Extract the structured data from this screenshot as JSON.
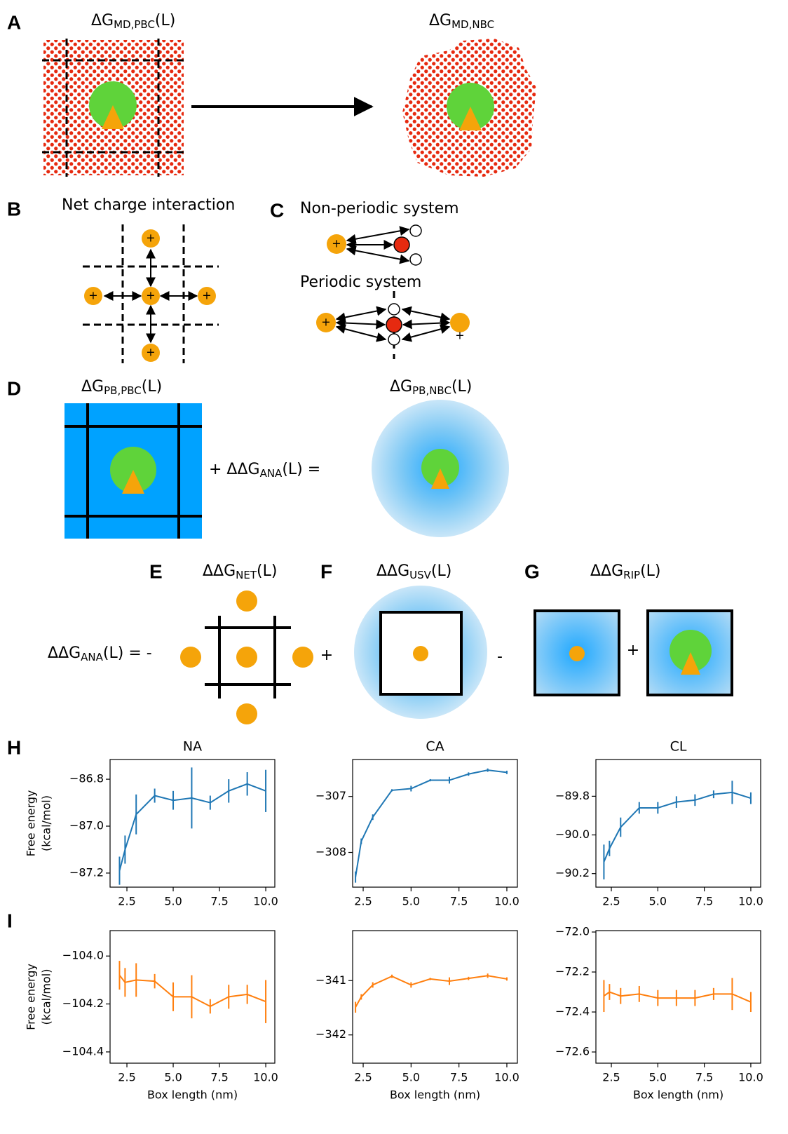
{
  "panels": {
    "A": {
      "label": "A",
      "left": {
        "prefix": "ΔG",
        "sub": "MD,PBC",
        "suffix": "(L)"
      },
      "right": {
        "prefix": "ΔG",
        "sub": "MD,NBC"
      }
    },
    "B": {
      "label": "B",
      "title": "Net charge interaction",
      "charge": "+"
    },
    "C": {
      "label": "C",
      "nonperiodic": "Non-periodic system",
      "periodic": "Periodic system",
      "charge": "+"
    },
    "D": {
      "label": "D",
      "left": {
        "prefix": "ΔG",
        "sub": "PB,PBC",
        "suffix": "(L)"
      },
      "middle": {
        "prefix": "+ ΔΔG",
        "sub": "ANA",
        "suffix": "(L) ="
      },
      "right": {
        "prefix": "ΔG",
        "sub": "PB,NBC",
        "suffix": "(L)"
      }
    },
    "E": {
      "label": "E",
      "title": {
        "prefix": "ΔΔG",
        "sub": "NET",
        "suffix": "(L)"
      },
      "lhs": {
        "prefix": "ΔΔG",
        "sub": "ANA",
        "suffix": "(L) = -"
      },
      "plus": "+"
    },
    "F": {
      "label": "F",
      "title": {
        "prefix": "ΔΔG",
        "sub": "USV",
        "suffix": "(L)"
      },
      "minus": "-"
    },
    "G": {
      "label": "G",
      "title": {
        "prefix": "ΔΔG",
        "sub": "RIP",
        "suffix": "(L)"
      },
      "plus": "+"
    },
    "H": {
      "label": "H"
    },
    "I": {
      "label": "I"
    }
  },
  "chart_data": [
    {
      "type": "line",
      "title": "NA",
      "ylabel": [
        "Free energy",
        "(kcal/mol)"
      ],
      "x": [
        2.1,
        2.4,
        3,
        4,
        5,
        6,
        7,
        8,
        9,
        10
      ],
      "series": [
        {
          "color": "#1f77b4",
          "values": [
            -87.19,
            -87.1,
            -86.95,
            -86.87,
            -86.89,
            -86.88,
            -86.9,
            -86.85,
            -86.82,
            -86.85
          ],
          "errors": [
            0.06,
            0.06,
            0.085,
            0.03,
            0.04,
            0.13,
            0.03,
            0.05,
            0.05,
            0.09
          ]
        }
      ],
      "xlim": [
        1.59,
        10.49
      ],
      "ylim": [
        -87.26,
        -86.716
      ],
      "xticks": [
        2.5,
        {
          "value": 5,
          "label": "5.0"
        },
        7.5,
        {
          "value": 10,
          "label": "10.0"
        }
      ],
      "yticks": [
        {
          "value": -87.2,
          "label": "−87.2"
        },
        {
          "value": -87.0,
          "label": "−87.0"
        },
        {
          "value": -86.8,
          "label": "−86.8"
        }
      ]
    },
    {
      "type": "line",
      "title": "CA",
      "x": [
        2.1,
        2.4,
        3,
        4,
        5,
        6,
        7,
        8,
        9,
        10
      ],
      "series": [
        {
          "color": "#1f77b4",
          "values": [
            -308.44,
            -307.8,
            -307.37,
            -306.89,
            -306.86,
            -306.71,
            -306.71,
            -306.6,
            -306.53,
            -306.57
          ],
          "errors": [
            0.1,
            0.05,
            0.05,
            0.02,
            0.05,
            0.02,
            0.06,
            0.03,
            0.03,
            0.03
          ]
        }
      ],
      "xlim": [
        1.95,
        10.55
      ],
      "ylim": [
        -308.62,
        -306.34
      ],
      "xticks": [
        2.5,
        {
          "value": 5,
          "label": "5.0"
        },
        7.5,
        {
          "value": 10,
          "label": "10.0"
        }
      ],
      "yticks": [
        {
          "value": -308,
          "label": "−308"
        },
        {
          "value": -307,
          "label": "−307"
        }
      ]
    },
    {
      "type": "line",
      "title": "CL",
      "x": [
        2.1,
        2.4,
        3,
        4,
        5,
        6,
        7,
        8,
        9,
        10
      ],
      "series": [
        {
          "color": "#1f77b4",
          "values": [
            -90.14,
            -90.07,
            -89.96,
            -89.86,
            -89.86,
            -89.83,
            -89.82,
            -89.79,
            -89.78,
            -89.81
          ],
          "errors": [
            0.09,
            0.04,
            0.05,
            0.03,
            0.03,
            0.03,
            0.03,
            0.02,
            0.06,
            0.03
          ]
        }
      ],
      "xlim": [
        1.67,
        10.53
      ],
      "ylim": [
        -90.27,
        -89.61
      ],
      "xticks": [
        2.5,
        {
          "value": 5,
          "label": "5.0"
        },
        7.5,
        {
          "value": 10,
          "label": "10.0"
        }
      ],
      "yticks": [
        {
          "value": -90.2,
          "label": "−90.2"
        },
        {
          "value": -90.0,
          "label": "−90.0"
        },
        {
          "value": -89.8,
          "label": "−89.8"
        }
      ]
    },
    {
      "type": "line",
      "ylabel": [
        "Free energy",
        "(kcal/mol)"
      ],
      "xlabel": "Box length (nm)",
      "x": [
        2.1,
        2.4,
        3,
        4,
        5,
        6,
        7,
        8,
        9,
        10
      ],
      "series": [
        {
          "color": "#ff7f0e",
          "values": [
            -104.08,
            -104.11,
            -104.1,
            -104.105,
            -104.17,
            -104.17,
            -104.21,
            -104.17,
            -104.16,
            -104.19
          ],
          "errors": [
            0.06,
            0.06,
            0.07,
            0.03,
            0.06,
            0.09,
            0.03,
            0.05,
            0.04,
            0.09
          ]
        }
      ],
      "xlim": [
        1.59,
        10.49
      ],
      "ylim": [
        -104.447,
        -103.894
      ],
      "xticks": [
        2.5,
        {
          "value": 5,
          "label": "5.0"
        },
        7.5,
        {
          "value": 10,
          "label": "10.0"
        }
      ],
      "yticks": [
        {
          "value": -104.4,
          "label": "−104.4"
        },
        {
          "value": -104.2,
          "label": "−104.2"
        },
        {
          "value": -104.0,
          "label": "−104.0"
        }
      ]
    },
    {
      "type": "line",
      "xlabel": "Box length (nm)",
      "x": [
        2.1,
        2.4,
        3,
        4,
        5,
        6,
        7,
        8,
        9,
        10
      ],
      "series": [
        {
          "color": "#ff7f0e",
          "values": [
            -341.49,
            -341.3,
            -341.08,
            -340.92,
            -341.08,
            -340.97,
            -341.01,
            -340.96,
            -340.91,
            -340.97
          ],
          "errors": [
            0.1,
            0.05,
            0.05,
            0.03,
            0.05,
            0.02,
            0.07,
            0.03,
            0.04,
            0.03
          ]
        }
      ],
      "xlim": [
        1.95,
        10.55
      ],
      "ylim": [
        -342.52,
        -340.08
      ],
      "xticks": [
        2.5,
        {
          "value": 5,
          "label": "5.0"
        },
        7.5,
        {
          "value": 10,
          "label": "10.0"
        }
      ],
      "yticks": [
        {
          "value": -342,
          "label": "−342"
        },
        {
          "value": -341,
          "label": "−341"
        }
      ]
    },
    {
      "type": "line",
      "xlabel": "Box length (nm)",
      "x": [
        2.1,
        2.4,
        3,
        4,
        5,
        6,
        7,
        8,
        9,
        10
      ],
      "series": [
        {
          "color": "#ff7f0e",
          "values": [
            -72.32,
            -72.3,
            -72.32,
            -72.31,
            -72.33,
            -72.33,
            -72.33,
            -72.31,
            -72.31,
            -72.35
          ],
          "errors": [
            0.08,
            0.04,
            0.04,
            0.04,
            0.04,
            0.04,
            0.04,
            0.03,
            0.08,
            0.05
          ]
        }
      ],
      "xlim": [
        1.67,
        10.53
      ],
      "ylim": [
        -72.656,
        -71.993
      ],
      "xticks": [
        2.5,
        {
          "value": 5,
          "label": "5.0"
        },
        7.5,
        {
          "value": 10,
          "label": "10.0"
        }
      ],
      "yticks": [
        {
          "value": -72.6,
          "label": "−72.6"
        },
        {
          "value": -72.4,
          "label": "−72.4"
        },
        {
          "value": -72.2,
          "label": "−72.2"
        },
        {
          "value": -72.0,
          "label": "−72.0"
        }
      ]
    }
  ]
}
